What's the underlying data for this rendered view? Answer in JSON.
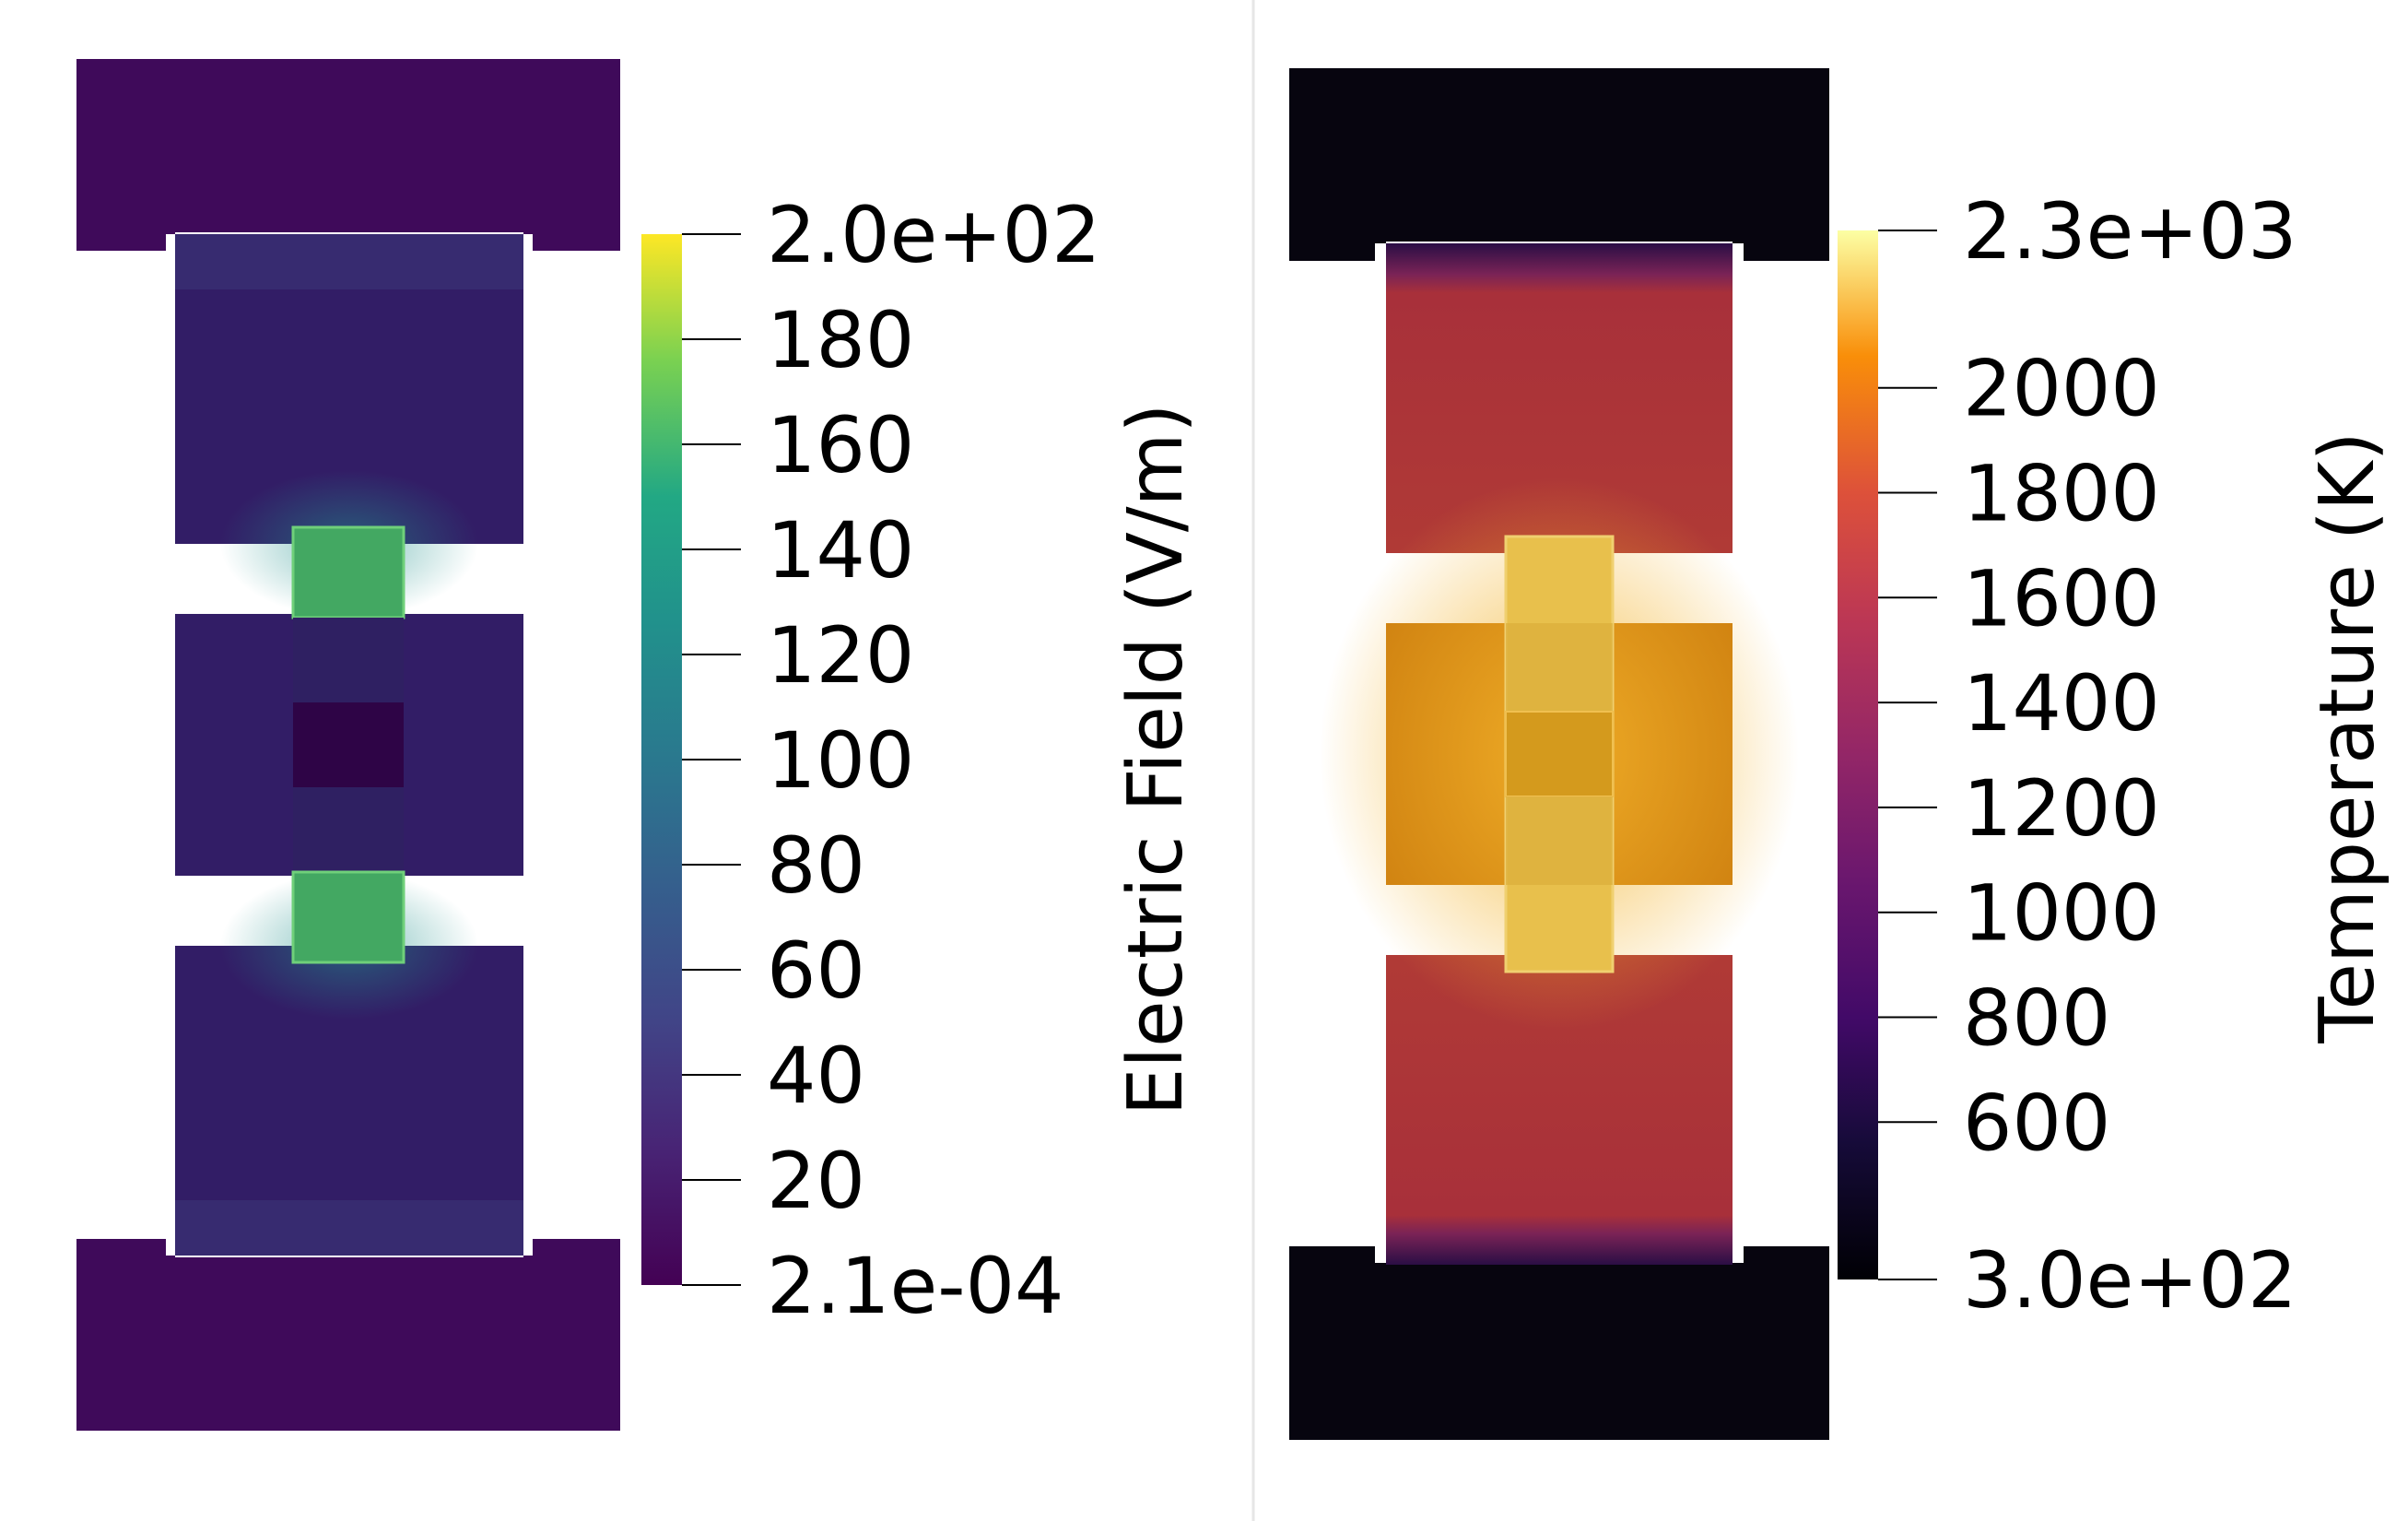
{
  "colors": {
    "background": "#ffffff",
    "divider": "#e6e6e6",
    "tick": "#000000",
    "text": "#000000",
    "efield_low": "#440154",
    "efield_high": "#fde725",
    "efield_housing": "#3f0a5a",
    "efield_conductor": "#321d66",
    "efield_sample": "#43a862",
    "efield_spacer": "#2e0446",
    "temp_low": "#000004",
    "temp_high": "#fcffa4",
    "temp_housing": "#07050f",
    "temp_conductor": "#a8303a",
    "temp_die": "#cc7d0e",
    "temp_sample": "#e8c04c",
    "temp_mid": "#d49a1d"
  },
  "panels": [
    {
      "id": "electric-field",
      "colormap": "viridis",
      "colorbar": {
        "title": "Electric Field (V/m)",
        "range": [
          0.00021,
          200
        ],
        "tick_values": [
          200,
          180,
          160,
          140,
          120,
          100,
          80,
          60,
          40,
          20,
          0.00021
        ],
        "tick_labels": [
          "2.0e+02",
          "180",
          "160",
          "140",
          "120",
          "100",
          "80",
          "60",
          "40",
          "20",
          "2.1e-04"
        ]
      }
    },
    {
      "id": "temperature",
      "colormap": "inferno",
      "colorbar": {
        "title": "Temperature (K)",
        "range": [
          300,
          2300
        ],
        "tick_values": [
          2300,
          2000,
          1800,
          1600,
          1400,
          1200,
          1000,
          800,
          600,
          300
        ],
        "tick_labels": [
          "2.3e+03",
          "2000",
          "1800",
          "1600",
          "1400",
          "1200",
          "1000",
          "800",
          "600",
          "3.0e+02"
        ]
      }
    }
  ]
}
